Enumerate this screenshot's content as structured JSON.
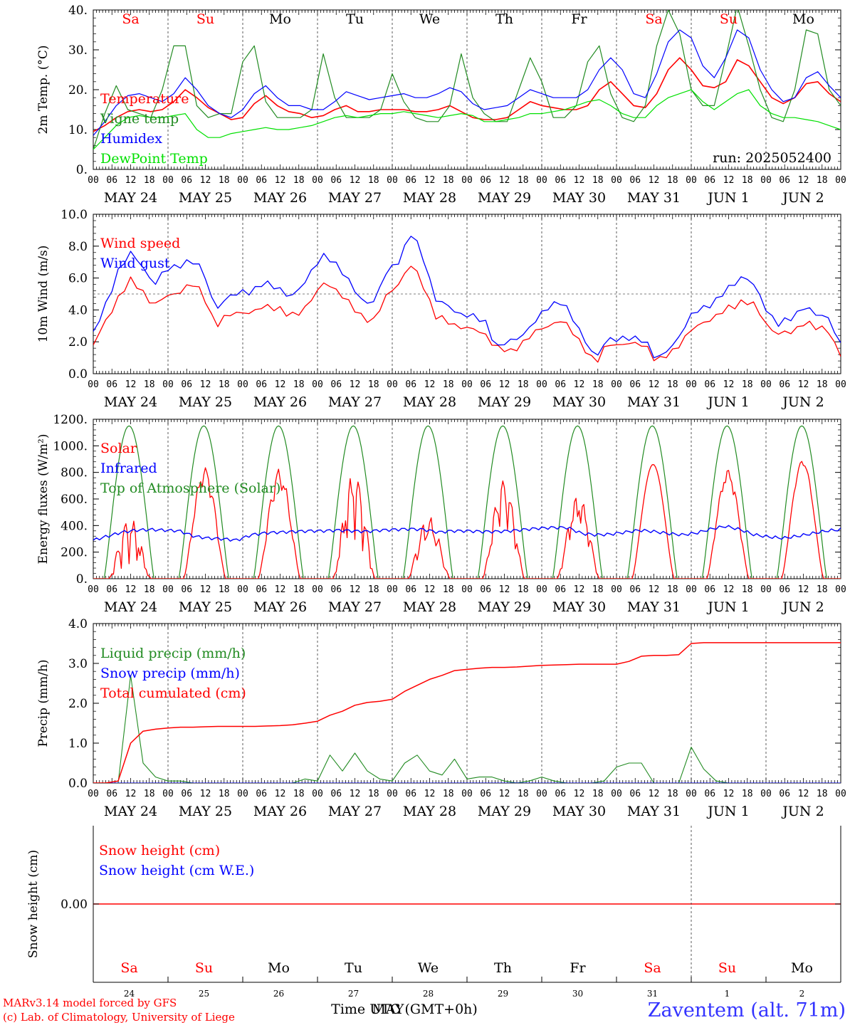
{
  "colors": {
    "red": "#ff0000",
    "green": "#228b22",
    "blue": "#0000ff",
    "lime": "#00e000",
    "axis": "#000000",
    "footer_red": "#ff0000",
    "station_blue": "#3333ff"
  },
  "days": {
    "names": [
      "Sa",
      "Su",
      "Mo",
      "Tu",
      "We",
      "Th",
      "Fr",
      "Sa",
      "Su",
      "Mo"
    ],
    "weekend_flags": [
      true,
      true,
      false,
      false,
      false,
      false,
      false,
      true,
      true,
      false
    ],
    "dates": [
      "MAY 24",
      "MAY 25",
      "MAY 26",
      "MAY 27",
      "MAY 28",
      "MAY 29",
      "MAY 30",
      "MAY 31",
      "JUN  1",
      "JUN  2"
    ],
    "day_numbers": [
      "24",
      "25",
      "26",
      "27",
      "28",
      "29",
      "30",
      "31",
      "1",
      "2"
    ],
    "hour_labels": [
      "00",
      "06",
      "12",
      "18"
    ],
    "final_hour_label": "00"
  },
  "chart_data": [
    {
      "type": "line",
      "id": "temperature",
      "ylabel": "2m Temp. (°C)",
      "ylim": [
        0,
        40
      ],
      "ytick_labels": [
        "0.",
        "10.",
        "20.",
        "30.",
        "40."
      ],
      "ytick_values": [
        0,
        10,
        20,
        30,
        40
      ],
      "annotation": "run: 2025052400",
      "x_hours_step": 6,
      "series": [
        {
          "name": "Temperature",
          "color": "red",
          "values": [
            9.5,
            11,
            13,
            14.5,
            15,
            14.5,
            15,
            17,
            20,
            18,
            15.5,
            14,
            12.5,
            13,
            16.5,
            18.5,
            16,
            14.5,
            14,
            13,
            13.5,
            15,
            16,
            14.5,
            14.5,
            15,
            15,
            15,
            14.5,
            14.5,
            15,
            16,
            14.5,
            13,
            12.5,
            12.5,
            13,
            15,
            17,
            16,
            15.5,
            15,
            15,
            16,
            20,
            22,
            19,
            16,
            15.5,
            19,
            25,
            28,
            25,
            21,
            20.5,
            22,
            27.5,
            26,
            22,
            18,
            16.5,
            18,
            21.5,
            22,
            19,
            17
          ]
        },
        {
          "name": "Vigne temp",
          "color": "green",
          "values": [
            5,
            14,
            21,
            15,
            14,
            13,
            20,
            31,
            31,
            16,
            13,
            14,
            14,
            27,
            31,
            17,
            13,
            13,
            13,
            15,
            29,
            18,
            13,
            13,
            13,
            15,
            24,
            17,
            13,
            12,
            12,
            16,
            29,
            18,
            14,
            12,
            12,
            20,
            28,
            22,
            13,
            13,
            16,
            27,
            31,
            19,
            13,
            12,
            16,
            31,
            40,
            34,
            20,
            16,
            16,
            28,
            41,
            31,
            20,
            13,
            12,
            20,
            35,
            34,
            20,
            16
          ]
        },
        {
          "name": "Humidex",
          "color": "blue",
          "values": [
            8.5,
            12,
            16,
            18.5,
            19,
            18,
            17,
            19,
            23,
            20,
            16,
            14,
            13,
            15,
            19,
            21,
            18,
            16,
            16,
            15,
            15,
            17,
            19.5,
            18.5,
            17.5,
            18,
            18.5,
            19,
            18,
            18,
            19,
            20.5,
            19.5,
            16.5,
            15,
            15.5,
            16,
            18,
            20,
            19,
            18,
            18,
            18,
            20,
            25,
            28,
            25,
            19,
            18,
            24,
            32,
            35,
            33,
            26,
            23,
            28,
            35,
            33,
            25,
            20,
            17,
            18,
            23,
            24.5,
            21,
            18
          ]
        },
        {
          "name": "DewPoint Temp",
          "color": "lime",
          "values": [
            5,
            8,
            11,
            13,
            13.5,
            13,
            13,
            13.5,
            14,
            10,
            8,
            8,
            9,
            9.5,
            10,
            10.5,
            10,
            10,
            10.5,
            11,
            12,
            13,
            13.5,
            13,
            13.5,
            14,
            14,
            14.5,
            14,
            13.5,
            13,
            13.5,
            14,
            13.5,
            12,
            12,
            12.5,
            13,
            14,
            14,
            14.5,
            15,
            16,
            17,
            17.5,
            16,
            14,
            13,
            13,
            16,
            18,
            19,
            20,
            17,
            15,
            17,
            19,
            20,
            16,
            14,
            13,
            13,
            12.5,
            12,
            11,
            10
          ]
        }
      ]
    },
    {
      "type": "line",
      "id": "wind",
      "ylabel": "10m Wind (m/s)",
      "ylim": [
        0,
        10
      ],
      "ytick_labels": [
        "0.0",
        "2.0",
        "4.0",
        "6.0",
        "8.0",
        "10.0"
      ],
      "ytick_values": [
        0,
        2,
        4,
        6,
        8,
        10
      ],
      "reference_line": 5,
      "x_hours_step": 6,
      "series": [
        {
          "name": "Wind speed",
          "color": "red",
          "values": [
            1.8,
            3.2,
            4.8,
            5.8,
            5.2,
            4.3,
            4.8,
            5.2,
            5.6,
            5.0,
            3.0,
            3.6,
            4.0,
            3.7,
            4.3,
            4.2,
            3.5,
            4.0,
            4.8,
            5.8,
            5.2,
            4.2,
            3.6,
            3.3,
            5.0,
            5.8,
            6.8,
            5.5,
            3.5,
            3.2,
            3.0,
            2.7,
            2.5,
            1.6,
            1.3,
            2.0,
            2.5,
            3.0,
            3.4,
            2.7,
            1.8,
            0.5,
            2.0,
            1.8,
            1.8,
            2.0,
            0.6,
            1.3,
            2.0,
            2.8,
            3.4,
            3.6,
            4.2,
            4.6,
            4.2,
            3.1,
            2.4,
            2.6,
            3.3,
            2.8,
            2.8,
            1.1
          ]
        },
        {
          "name": "Wind gust",
          "color": "blue",
          "values": [
            2.5,
            4.2,
            6.5,
            7.5,
            6.8,
            5.6,
            6.5,
            6.9,
            7.0,
            6.5,
            4.0,
            4.7,
            5.3,
            5.0,
            5.8,
            5.5,
            4.6,
            5.6,
            6.6,
            7.5,
            6.8,
            5.5,
            4.6,
            4.5,
            6.5,
            7.2,
            8.8,
            7.2,
            4.5,
            4.2,
            3.8,
            3.5,
            3.3,
            1.6,
            2.0,
            2.5,
            3.1,
            4.2,
            4.6,
            3.6,
            2.4,
            0.8,
            2.3,
            2.2,
            2.1,
            2.3,
            0.7,
            1.6,
            2.6,
            3.8,
            4.3,
            4.6,
            5.5,
            6.2,
            5.4,
            4.0,
            3.0,
            3.5,
            4.3,
            3.6,
            3.6,
            1.8
          ]
        }
      ]
    },
    {
      "type": "line",
      "id": "energy",
      "ylabel": "Energy fluxes (W/m²)",
      "ylim": [
        0,
        1200
      ],
      "ytick_labels": [
        "0.",
        "200.",
        "400.",
        "600.",
        "800.",
        "1000.",
        "1200."
      ],
      "ytick_values": [
        0,
        200,
        400,
        600,
        800,
        1000,
        1200
      ],
      "solar_daily_peaks": [
        460,
        840,
        830,
        800,
        470,
        740,
        630,
        860,
        820,
        890
      ],
      "solar_daily_cloudiness": [
        0.8,
        0.2,
        0.25,
        0.65,
        0.55,
        0.5,
        0.45,
        0.0,
        0.15,
        0.05
      ],
      "toa_daily_peak": 1150,
      "series": [
        {
          "name": "Solar",
          "color": "red"
        },
        {
          "name": "Infrared",
          "color": "blue",
          "values_6h": [
            290,
            320,
            350,
            365,
            370,
            365,
            360,
            320,
            305,
            300,
            290,
            330,
            345,
            350,
            355,
            360,
            360,
            365,
            360,
            355,
            365,
            370,
            375,
            370,
            350,
            360,
            360,
            355,
            355,
            360,
            370,
            380,
            385,
            385,
            340,
            330,
            335,
            350,
            365,
            355,
            340,
            330,
            345,
            375,
            395,
            370,
            330,
            315,
            305,
            320,
            340,
            360,
            370
          ]
        },
        {
          "name": "Top of Atmosphere (Solar)",
          "color": "green"
        }
      ]
    },
    {
      "type": "line",
      "id": "precip",
      "ylabel": "Precip (mm/h)",
      "ylim": [
        0,
        4
      ],
      "ytick_labels": [
        "0.0",
        "1.0",
        "2.0",
        "3.0",
        "4.0"
      ],
      "ytick_values": [
        0,
        1,
        2,
        3,
        4
      ],
      "x_hours_step": 6,
      "series": [
        {
          "name": "Liquid precip (mm/h)",
          "color": "green",
          "values": [
            0,
            0,
            0,
            2.7,
            0.5,
            0.15,
            0.05,
            0.05,
            0,
            0,
            0,
            0,
            0,
            0,
            0,
            0,
            0,
            0.1,
            0.05,
            0.7,
            0.3,
            0.75,
            0.3,
            0.1,
            0.05,
            0.5,
            0.7,
            0.3,
            0.2,
            0.6,
            0.1,
            0.15,
            0.15,
            0.05,
            0,
            0.05,
            0.15,
            0.05,
            0,
            0,
            0,
            0.05,
            0.4,
            0.5,
            0.5,
            0,
            0,
            0,
            0.9,
            0.35,
            0.05,
            0,
            0,
            0,
            0,
            0,
            0,
            0,
            0,
            0,
            0
          ]
        },
        {
          "name": "Snow precip (mm/h)",
          "color": "blue",
          "values": [
            0,
            0,
            0,
            0,
            0,
            0,
            0,
            0,
            0,
            0,
            0,
            0,
            0,
            0,
            0,
            0,
            0,
            0,
            0,
            0,
            0,
            0,
            0,
            0,
            0,
            0,
            0,
            0,
            0,
            0,
            0,
            0,
            0,
            0,
            0,
            0,
            0,
            0,
            0,
            0,
            0,
            0,
            0,
            0,
            0,
            0,
            0,
            0,
            0,
            0,
            0,
            0,
            0,
            0,
            0,
            0,
            0,
            0,
            0,
            0,
            0
          ]
        },
        {
          "name": "Total cumulated (cm)",
          "color": "red",
          "values": [
            0,
            0,
            0.05,
            1.0,
            1.3,
            1.35,
            1.38,
            1.4,
            1.4,
            1.41,
            1.42,
            1.42,
            1.42,
            1.42,
            1.43,
            1.44,
            1.46,
            1.5,
            1.55,
            1.7,
            1.8,
            1.95,
            2.02,
            2.05,
            2.1,
            2.3,
            2.45,
            2.6,
            2.7,
            2.82,
            2.85,
            2.88,
            2.9,
            2.9,
            2.91,
            2.93,
            2.95,
            2.96,
            2.97,
            2.98,
            2.98,
            2.98,
            2.98,
            3.05,
            3.18,
            3.2,
            3.2,
            3.22,
            3.5,
            3.52,
            3.52,
            3.52,
            3.52,
            3.52,
            3.52,
            3.52,
            3.52,
            3.52,
            3.52,
            3.52,
            3.52
          ]
        }
      ]
    },
    {
      "type": "line",
      "id": "snow",
      "ylabel": "Snow height (cm)",
      "ytick_labels": [
        "0.00"
      ],
      "ytick_values": [
        0
      ],
      "series": [
        {
          "name": "Snow height (cm)",
          "color": "red",
          "values": [
            0,
            0
          ]
        },
        {
          "name": "Snow height (cm W.E.)",
          "color": "blue",
          "values": [
            0,
            0
          ]
        }
      ]
    }
  ],
  "footer": {
    "xlabel": "Time UTC (GMT+0h)",
    "month_overlay": "MAY",
    "credit_line1": "MARv3.14 model forced by GFS",
    "credit_line2": "(c) Lab. of Climatology, University of Liege",
    "station": "Zaventem (alt. 71m)"
  }
}
